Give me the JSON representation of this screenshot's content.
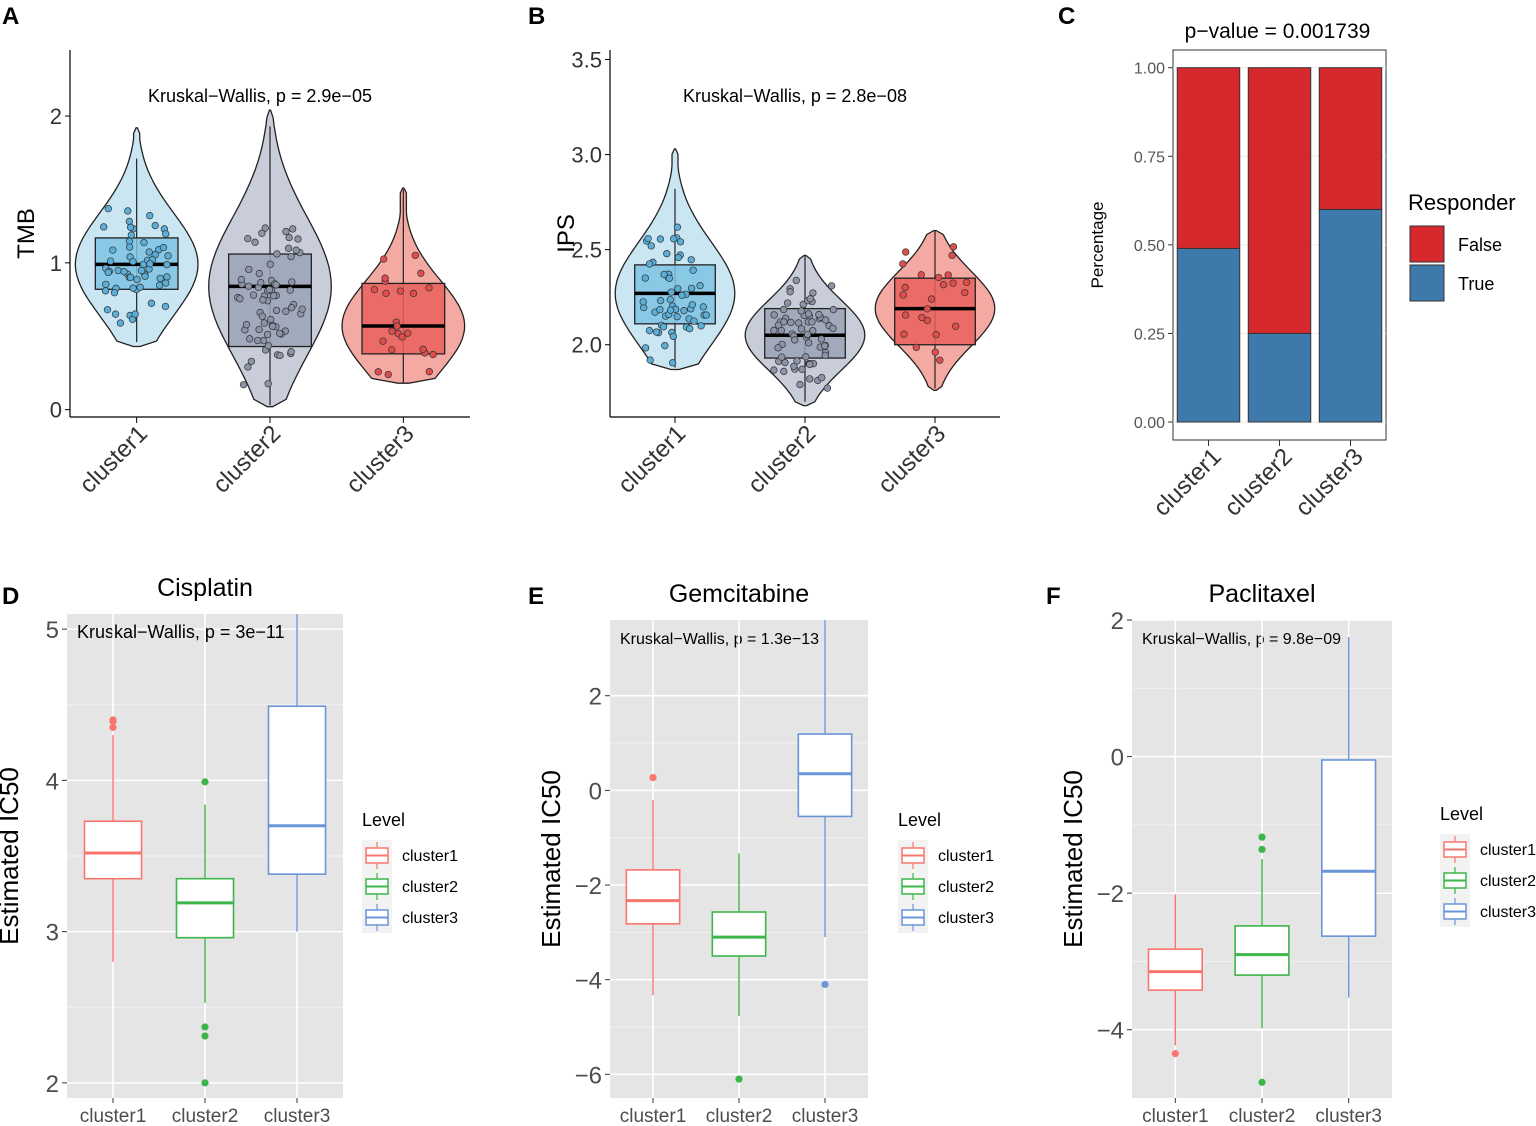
{
  "figure": {
    "panel_letters": [
      "A",
      "B",
      "C",
      "D",
      "E",
      "F"
    ]
  },
  "colors": {
    "cluster1_fill": "#7ec3e2",
    "cluster1_violin": "#cbe6f3",
    "cluster1_point": "#5aaed8",
    "cluster2_fill": "#9aa2b6",
    "cluster2_violin": "#c9cdd9",
    "cluster2_point": "#8d94a8",
    "cluster3_fill": "#e9605d",
    "cluster3_violin": "#f4aaa3",
    "cluster3_point": "#e14d4b",
    "false_red": "#d7292d",
    "true_blue": "#3d79ab",
    "gg_panel": "#e5e5e5",
    "gg_red": "#f8766d",
    "gg_green": "#3cb54a",
    "gg_blue": "#6a95d8"
  },
  "chart_data": [
    {
      "panel": "A",
      "type": "violin+box",
      "title": "",
      "xlabel": "",
      "ylabel": "TMB",
      "annotation": "Kruskal−Wallis, p = 2.9e−05",
      "categories": [
        "cluster1",
        "cluster2",
        "cluster3"
      ],
      "ylim": [
        -0.05,
        2.45
      ],
      "yticks": [
        0,
        1,
        2
      ],
      "ytick_labels": [
        "0",
        "1",
        "2"
      ],
      "boxes": [
        {
          "name": "cluster1",
          "q1": 0.82,
          "median": 0.99,
          "q3": 1.17,
          "whisker_low": 0.46,
          "whisker_high": 1.71
        },
        {
          "name": "cluster2",
          "q1": 0.43,
          "median": 0.84,
          "q3": 1.06,
          "whisker_low": 0.03,
          "whisker_high": 1.93
        },
        {
          "name": "cluster3",
          "q1": 0.38,
          "median": 0.57,
          "q3": 0.86,
          "whisker_low": 0.18,
          "whisker_high": 1.5
        }
      ],
      "violins": [
        {
          "name": "cluster1",
          "min": 0.43,
          "max": 1.92
        },
        {
          "name": "cluster2",
          "min": 0.02,
          "max": 2.04
        },
        {
          "name": "cluster3",
          "min": 0.18,
          "max": 1.51
        }
      ]
    },
    {
      "panel": "B",
      "type": "violin+box",
      "title": "",
      "xlabel": "",
      "ylabel": "IPS",
      "annotation": "Kruskal−Wallis, p = 2.8e−08",
      "categories": [
        "cluster1",
        "cluster2",
        "cluster3"
      ],
      "ylim": [
        1.62,
        3.55
      ],
      "yticks": [
        2.0,
        2.5,
        3.0,
        3.5
      ],
      "ytick_labels": [
        "2.0",
        "2.5",
        "3.0",
        "3.5"
      ],
      "boxes": [
        {
          "name": "cluster1",
          "q1": 2.11,
          "median": 2.27,
          "q3": 2.42,
          "whisker_low": 1.88,
          "whisker_high": 2.82
        },
        {
          "name": "cluster2",
          "q1": 1.93,
          "median": 2.05,
          "q3": 2.19,
          "whisker_low": 1.7,
          "whisker_high": 2.47
        },
        {
          "name": "cluster3",
          "q1": 2.0,
          "median": 2.19,
          "q3": 2.35,
          "whisker_low": 1.77,
          "whisker_high": 2.6
        }
      ],
      "violins": [
        {
          "name": "cluster1",
          "min": 1.87,
          "max": 3.03
        },
        {
          "name": "cluster2",
          "min": 1.68,
          "max": 2.47
        },
        {
          "name": "cluster3",
          "min": 1.76,
          "max": 2.6
        }
      ]
    },
    {
      "panel": "C",
      "type": "bar",
      "stacked": true,
      "title": "p−value = 0.001739",
      "xlabel": "",
      "ylabel": "Percentage",
      "categories": [
        "cluster1",
        "cluster2",
        "cluster3"
      ],
      "ylim": [
        0,
        1.05
      ],
      "yticks": [
        0,
        0.25,
        0.5,
        0.75,
        1.0
      ],
      "ytick_labels": [
        "0.00",
        "0.25",
        "0.50",
        "0.75",
        "1.00"
      ],
      "legend_title": "Responder",
      "legend_position": "right",
      "series": [
        {
          "name": "True",
          "values": [
            0.49,
            0.25,
            0.6
          ]
        },
        {
          "name": "False",
          "values": [
            0.51,
            0.75,
            0.4
          ]
        }
      ]
    },
    {
      "panel": "D",
      "type": "box",
      "title": "Cisplatin",
      "xlabel": "",
      "ylabel": "Estimated IC50",
      "annotation": "Kruskal−Wallis, p = 3e−11",
      "categories": [
        "cluster1",
        "cluster2",
        "cluster3"
      ],
      "ylim": [
        1.9,
        5.1
      ],
      "yticks": [
        2,
        3,
        4,
        5
      ],
      "ytick_labels": [
        "2",
        "3",
        "4",
        "5"
      ],
      "legend_title": "Level",
      "legend_position": "right",
      "legend_labels": [
        "cluster1",
        "cluster2",
        "cluster3"
      ],
      "boxes": [
        {
          "name": "cluster1",
          "q1": 3.35,
          "median": 3.52,
          "q3": 3.73,
          "whisker_low": 2.8,
          "whisker_high": 4.3,
          "outliers": [
            4.35,
            4.39,
            4.4
          ]
        },
        {
          "name": "cluster2",
          "q1": 2.96,
          "median": 3.19,
          "q3": 3.35,
          "whisker_low": 2.53,
          "whisker_high": 3.84,
          "outliers": [
            3.99,
            2.37,
            2.31,
            2.0
          ]
        },
        {
          "name": "cluster3",
          "q1": 3.38,
          "median": 3.7,
          "q3": 4.49,
          "whisker_low": 3.0,
          "whisker_high": 5.1,
          "outliers": []
        }
      ]
    },
    {
      "panel": "E",
      "type": "box",
      "title": "Gemcitabine",
      "xlabel": "",
      "ylabel": "Estimated IC50",
      "annotation": "Kruskal−Wallis, p = 1.3e−13",
      "categories": [
        "cluster1",
        "cluster2",
        "cluster3"
      ],
      "ylim": [
        -6.5,
        3.6
      ],
      "yticks": [
        -6,
        -4,
        -2,
        0,
        2
      ],
      "ytick_labels": [
        "−6",
        "−4",
        "−2",
        "0",
        "2"
      ],
      "legend_title": "Level",
      "legend_position": "right",
      "legend_labels": [
        "cluster1",
        "cluster2",
        "cluster3"
      ],
      "boxes": [
        {
          "name": "cluster1",
          "q1": -2.82,
          "median": -2.33,
          "q3": -1.68,
          "whisker_low": -4.33,
          "whisker_high": -0.2,
          "outliers": [
            0.27
          ]
        },
        {
          "name": "cluster2",
          "q1": -3.5,
          "median": -3.1,
          "q3": -2.57,
          "whisker_low": -4.77,
          "whisker_high": -1.33,
          "outliers": [
            -6.1
          ]
        },
        {
          "name": "cluster3",
          "q1": -0.55,
          "median": 0.35,
          "q3": 1.19,
          "whisker_low": -3.1,
          "whisker_high": 3.6,
          "outliers": [
            -4.1
          ]
        }
      ]
    },
    {
      "panel": "F",
      "type": "box",
      "title": "Paclitaxel",
      "xlabel": "",
      "ylabel": "Estimated IC50",
      "annotation": "Kruskal−Wallis, p = 9.8e−09",
      "categories": [
        "cluster1",
        "cluster2",
        "cluster3"
      ],
      "ylim": [
        -5.0,
        2.0
      ],
      "yticks": [
        -4,
        -2,
        0,
        2
      ],
      "ytick_labels": [
        "−4",
        "−2",
        "0",
        "2"
      ],
      "legend_title": "Level",
      "legend_position": "right",
      "legend_labels": [
        "cluster1",
        "cluster2",
        "cluster3"
      ],
      "boxes": [
        {
          "name": "cluster1",
          "q1": -3.42,
          "median": -3.15,
          "q3": -2.82,
          "whisker_low": -4.23,
          "whisker_high": -2.02,
          "outliers": [
            -4.35
          ]
        },
        {
          "name": "cluster2",
          "q1": -3.2,
          "median": -2.9,
          "q3": -2.48,
          "whisker_low": -3.98,
          "whisker_high": -1.5,
          "outliers": [
            -1.18,
            -1.36,
            -4.77
          ]
        },
        {
          "name": "cluster3",
          "q1": -2.63,
          "median": -1.68,
          "q3": -0.05,
          "whisker_low": -3.53,
          "whisker_high": 1.75,
          "outliers": []
        }
      ]
    }
  ]
}
